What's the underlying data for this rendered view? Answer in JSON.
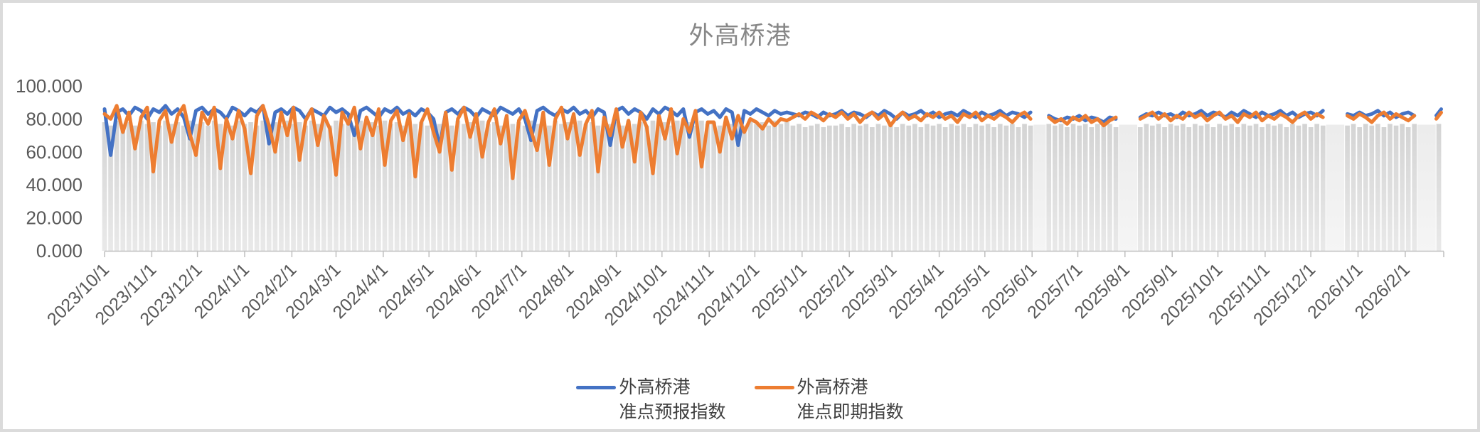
{
  "title": "外高桥港",
  "colors": {
    "series_forecast": "#4472C4",
    "series_spot": "#ED7D31",
    "bars": "#D9D9D9",
    "bars_gap": "#EFEFEF",
    "axis": "#BFBFBF",
    "tick_label": "#595959",
    "title_text": "#878787",
    "frame_border": "#DBDBDB",
    "legend_text": "#3F3F3F"
  },
  "legend": {
    "position": "bottom",
    "items": [
      {
        "line1": "外高桥港",
        "line2": "准点预报指数",
        "color": "#4472C4"
      },
      {
        "line1": "外高桥港",
        "line2": "准点即期指数",
        "color": "#ED7D31"
      }
    ]
  },
  "chart_data": {
    "type": "line",
    "title": "外高桥港",
    "xlabel": "",
    "ylabel": "",
    "ylim": [
      0,
      100
    ],
    "grid": false,
    "legend_position": "bottom",
    "y_tick_labels": [
      "0.000",
      "20.000",
      "40.000",
      "60.000",
      "80.000",
      "100.000"
    ],
    "y_tick_values": [
      0,
      20,
      40,
      60,
      80,
      100
    ],
    "x_tick_labels": [
      "2023/10/1",
      "2023/11/1",
      "2023/12/1",
      "2024/1/1",
      "2024/2/1",
      "2024/3/1",
      "2024/4/1",
      "2024/5/1",
      "2024/6/1",
      "2024/7/1",
      "2024/8/1",
      "2024/9/1",
      "2024/10/1",
      "2024/11/1",
      "2024/12/1",
      "2025/1/1",
      "2025/2/1",
      "2025/3/1",
      "2025/4/1",
      "2025/5/1",
      "2025/6/1",
      "2025/7/1",
      "2025/8/1",
      "2025/9/1",
      "2025/10/1",
      "2025/11/1",
      "2025/12/1",
      "2026/1/1",
      "2026/2/1"
    ],
    "x_tick_days": [
      0,
      31,
      61,
      92,
      123,
      152,
      183,
      213,
      244,
      274,
      305,
      336,
      366,
      397,
      427,
      458,
      489,
      517,
      548,
      578,
      609,
      639,
      670,
      701,
      731,
      762,
      792,
      823,
      854
    ],
    "start_date": "2023/10/1",
    "sample_interval_days": 4,
    "note_gaps": "null values = no-data periods shown as light bands (early Jun 2025, early Aug 2025, mid-late Dec 2025, mid Feb 2026)",
    "series": [
      {
        "name": "外高桥港准点预报指数",
        "color": "#4472C4",
        "values": [
          86,
          58,
          84,
          86,
          82,
          87,
          85,
          80,
          86,
          84,
          88,
          83,
          86,
          81,
          68,
          85,
          87,
          83,
          86,
          84,
          80,
          87,
          85,
          82,
          86,
          84,
          88,
          65,
          84,
          86,
          83,
          87,
          85,
          80,
          86,
          84,
          82,
          87,
          84,
          86,
          83,
          70,
          85,
          87,
          84,
          81,
          86,
          84,
          87,
          83,
          85,
          82,
          86,
          84,
          80,
          63,
          84,
          86,
          83,
          87,
          85,
          81,
          86,
          84,
          82,
          87,
          85,
          83,
          86,
          80,
          67,
          85,
          87,
          84,
          82,
          86,
          84,
          87,
          83,
          85,
          81,
          86,
          84,
          64,
          85,
          87,
          83,
          86,
          84,
          80,
          86,
          83,
          87,
          85,
          82,
          86,
          69,
          84,
          86,
          83,
          85,
          81,
          86,
          84,
          64,
          85,
          83,
          86,
          84,
          82,
          85,
          83,
          84,
          83,
          82,
          84,
          83,
          81,
          84,
          82,
          83,
          85,
          82,
          84,
          83,
          81,
          84,
          82,
          85,
          83,
          80,
          84,
          82,
          83,
          85,
          82,
          84,
          81,
          83,
          84,
          82,
          85,
          83,
          81,
          84,
          82,
          83,
          85,
          82,
          84,
          83,
          81,
          84,
          null,
          null,
          82,
          80,
          79,
          81,
          80,
          82,
          79,
          81,
          80,
          78,
          81,
          80,
          null,
          null,
          null,
          81,
          83,
          82,
          84,
          82,
          83,
          81,
          84,
          82,
          83,
          85,
          82,
          84,
          83,
          81,
          84,
          82,
          85,
          83,
          81,
          84,
          82,
          83,
          85,
          82,
          84,
          81,
          83,
          84,
          82,
          85,
          null,
          null,
          null,
          83,
          82,
          84,
          82,
          83,
          85,
          82,
          84,
          81,
          83,
          84,
          82,
          null,
          null,
          null,
          84
        ]
      },
      {
        "name": "外高桥港准点即期指数",
        "color": "#ED7D31",
        "values": [
          83,
          80,
          88,
          72,
          84,
          62,
          81,
          87,
          48,
          79,
          85,
          66,
          82,
          88,
          71,
          58,
          84,
          77,
          87,
          50,
          80,
          68,
          85,
          74,
          47,
          82,
          88,
          76,
          60,
          84,
          70,
          87,
          55,
          79,
          86,
          64,
          82,
          74,
          46,
          84,
          77,
          87,
          62,
          81,
          70,
          86,
          52,
          79,
          85,
          67,
          83,
          45,
          78,
          86,
          72,
          60,
          84,
          49,
          80,
          87,
          69,
          83,
          57,
          78,
          86,
          65,
          82,
          44,
          79,
          85,
          73,
          61,
          84,
          52,
          80,
          87,
          68,
          83,
          58,
          77,
          85,
          48,
          81,
          70,
          86,
          63,
          79,
          54,
          84,
          75,
          47,
          82,
          68,
          86,
          59,
          80,
          72,
          85,
          51,
          78,
          78,
          60,
          81,
          68,
          82,
          72,
          80,
          78,
          74,
          80,
          76,
          80,
          79,
          81,
          83,
          80,
          84,
          82,
          79,
          83,
          81,
          84,
          80,
          83,
          78,
          82,
          84,
          80,
          83,
          76,
          81,
          84,
          80,
          82,
          79,
          83,
          81,
          84,
          80,
          82,
          78,
          83,
          81,
          84,
          79,
          82,
          80,
          83,
          81,
          78,
          82,
          84,
          80,
          null,
          null,
          81,
          78,
          80,
          77,
          81,
          79,
          82,
          78,
          80,
          76,
          79,
          81,
          null,
          null,
          null,
          80,
          82,
          84,
          80,
          83,
          79,
          82,
          80,
          84,
          81,
          83,
          79,
          82,
          84,
          80,
          82,
          78,
          83,
          81,
          84,
          79,
          82,
          80,
          83,
          81,
          78,
          82,
          84,
          80,
          83,
          81,
          null,
          null,
          null,
          82,
          80,
          83,
          81,
          78,
          82,
          84,
          80,
          83,
          81,
          79,
          82,
          null,
          null,
          null,
          82
        ]
      },
      {
        "name": "background-columns",
        "type": "bar",
        "color": "#D9D9D9",
        "values": [
          78,
          76,
          79,
          77,
          78,
          76,
          79,
          77,
          78,
          76,
          79,
          77,
          78,
          76,
          79,
          77,
          78,
          76,
          79,
          77,
          78,
          76,
          79,
          77,
          78,
          76,
          79,
          77,
          78,
          76,
          79,
          77,
          78,
          76,
          79,
          77,
          78,
          76,
          79,
          77,
          78,
          76,
          79,
          77,
          78,
          76,
          79,
          77,
          78,
          76,
          79,
          77,
          78,
          76,
          79,
          77,
          78,
          76,
          79,
          77,
          78,
          76,
          79,
          77,
          78,
          76,
          79,
          77,
          78,
          76,
          79,
          77,
          78,
          76,
          79,
          77,
          78,
          76,
          79,
          77,
          78,
          76,
          79,
          77,
          78,
          76,
          79,
          77,
          78,
          76,
          79,
          77,
          78,
          76,
          79,
          77,
          78,
          76,
          79,
          77,
          78,
          76,
          79,
          77,
          78,
          76,
          79,
          77,
          78,
          76,
          79,
          77,
          78,
          76,
          77,
          75,
          76,
          77,
          75,
          76,
          76,
          77,
          75,
          77,
          76,
          77,
          75,
          77,
          76,
          77,
          75,
          77,
          76,
          77,
          75,
          77,
          76,
          77,
          75,
          77,
          76,
          77,
          75,
          77,
          76,
          77,
          75,
          77,
          76,
          77,
          75,
          77,
          76,
          77,
          75,
          77,
          76,
          77,
          75,
          77,
          76,
          77,
          75,
          77,
          76,
          77,
          75,
          77,
          76,
          77,
          75,
          77,
          76,
          77,
          75,
          77,
          76,
          77,
          75,
          77,
          76,
          77,
          75,
          77,
          76,
          77,
          75,
          77,
          76,
          77,
          75,
          77,
          76,
          77,
          75,
          77,
          76,
          77,
          75,
          77,
          76,
          77,
          75,
          77,
          76,
          77,
          75,
          77,
          76,
          77,
          75,
          77,
          76,
          77,
          75,
          77,
          76,
          77,
          75,
          77
        ]
      }
    ]
  }
}
